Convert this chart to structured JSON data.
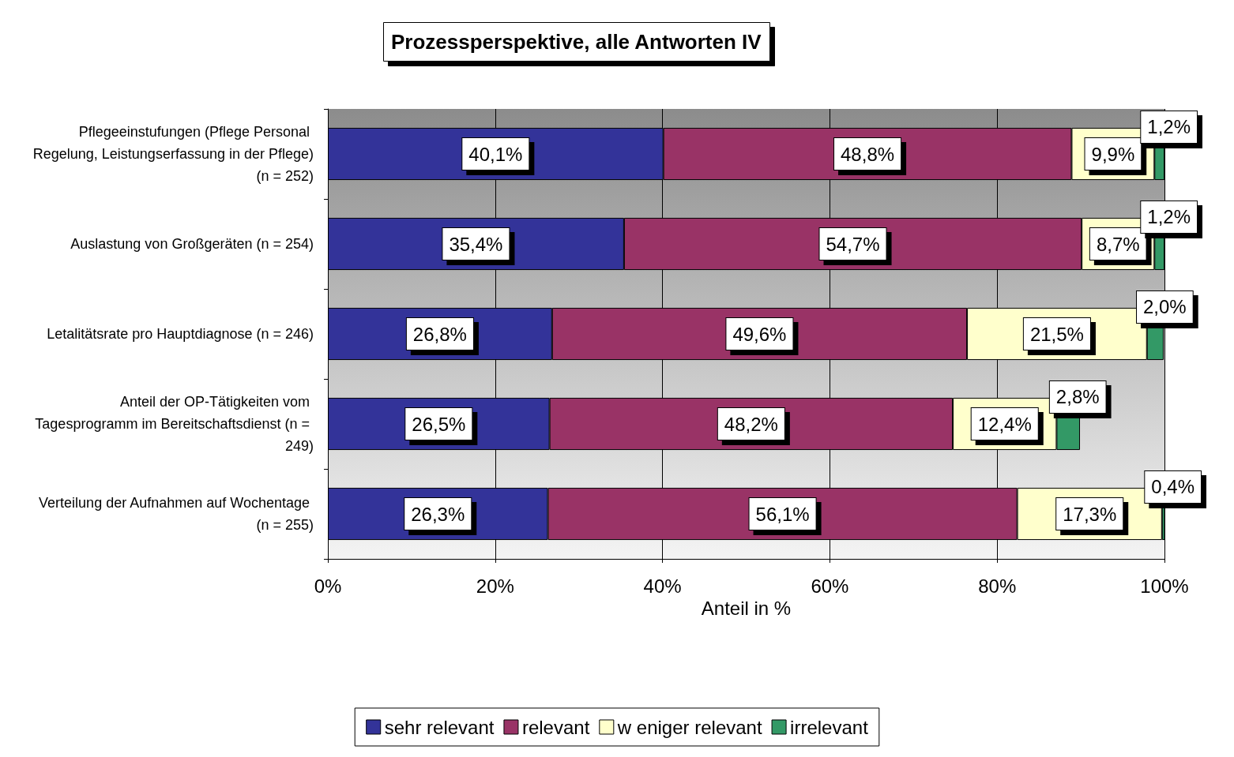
{
  "chart_data": {
    "type": "bar",
    "orientation": "horizontal",
    "stacked": true,
    "title": "Prozessperspektive, alle Antworten IV",
    "xlabel": "Anteil in %",
    "categories": [
      "Pflegeeinstufungen (Pflege Personal Regelung, Leistungserfassung in der Pflege) (n = 252)",
      "Auslastung von Großgeräten (n = 254)",
      "Letalitätsrate pro Hauptdiagnose (n = 246)",
      "Anteil der OP-Tätigkeiten vom Tagesprogramm im Bereitschaftsdienst (n = 249)",
      "Verteilung der Aufnahmen auf Wochentage (n = 255)"
    ],
    "series": [
      {
        "name": "sehr relevant",
        "color": "#333399",
        "values": [
          40.1,
          35.4,
          26.8,
          26.5,
          26.3
        ],
        "value_labels": [
          "40,1%",
          "35,4%",
          "26,8%",
          "26,5%",
          "26,3%"
        ]
      },
      {
        "name": "relevant",
        "color": "#993366",
        "values": [
          48.8,
          54.7,
          49.6,
          48.2,
          56.1
        ],
        "value_labels": [
          "48,8%",
          "54,7%",
          "49,6%",
          "48,2%",
          "56,1%"
        ]
      },
      {
        "name": "w eniger relevant",
        "color": "#ffffcc",
        "values": [
          9.9,
          8.7,
          21.5,
          12.4,
          17.3
        ],
        "value_labels": [
          "9,9%",
          "8,7%",
          "21,5%",
          "12,4%",
          "17,3%"
        ]
      },
      {
        "name": "irrelevant",
        "color": "#339966",
        "values": [
          1.2,
          1.2,
          2.0,
          2.8,
          0.4
        ],
        "value_labels": [
          "1,2%",
          "1,2%",
          "2,0%",
          "2,8%",
          "0,4%"
        ]
      }
    ],
    "xlim": [
      0,
      100
    ],
    "xticks": [
      {
        "value": 0,
        "label": "0%"
      },
      {
        "value": 20,
        "label": "20%"
      },
      {
        "value": 40,
        "label": "40%"
      },
      {
        "value": 60,
        "label": "60%"
      },
      {
        "value": 80,
        "label": "80%"
      },
      {
        "value": 100,
        "label": "100%"
      }
    ],
    "grid": "x",
    "legend": "bottom"
  }
}
